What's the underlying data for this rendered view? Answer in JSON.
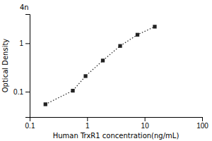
{
  "chart_data": {
    "type": "scatter",
    "x": [
      0.188,
      0.563,
      0.938,
      1.875,
      3.75,
      7.5,
      15.0
    ],
    "values": [
      0.055,
      0.105,
      0.21,
      0.44,
      0.88,
      1.5,
      2.2
    ],
    "xlim": [
      0.1,
      100
    ],
    "ylim": [
      0.03,
      4
    ],
    "xticks": [
      0.1,
      1,
      10,
      100
    ],
    "yticks": [
      0.1,
      1
    ],
    "log": true,
    "xlabel": "Human TrxR1 concentration(ng/mL)",
    "ylabel": "Optical Density",
    "annotation": "4n",
    "marker": "square",
    "line_style": "dotted",
    "color": "#222222"
  }
}
